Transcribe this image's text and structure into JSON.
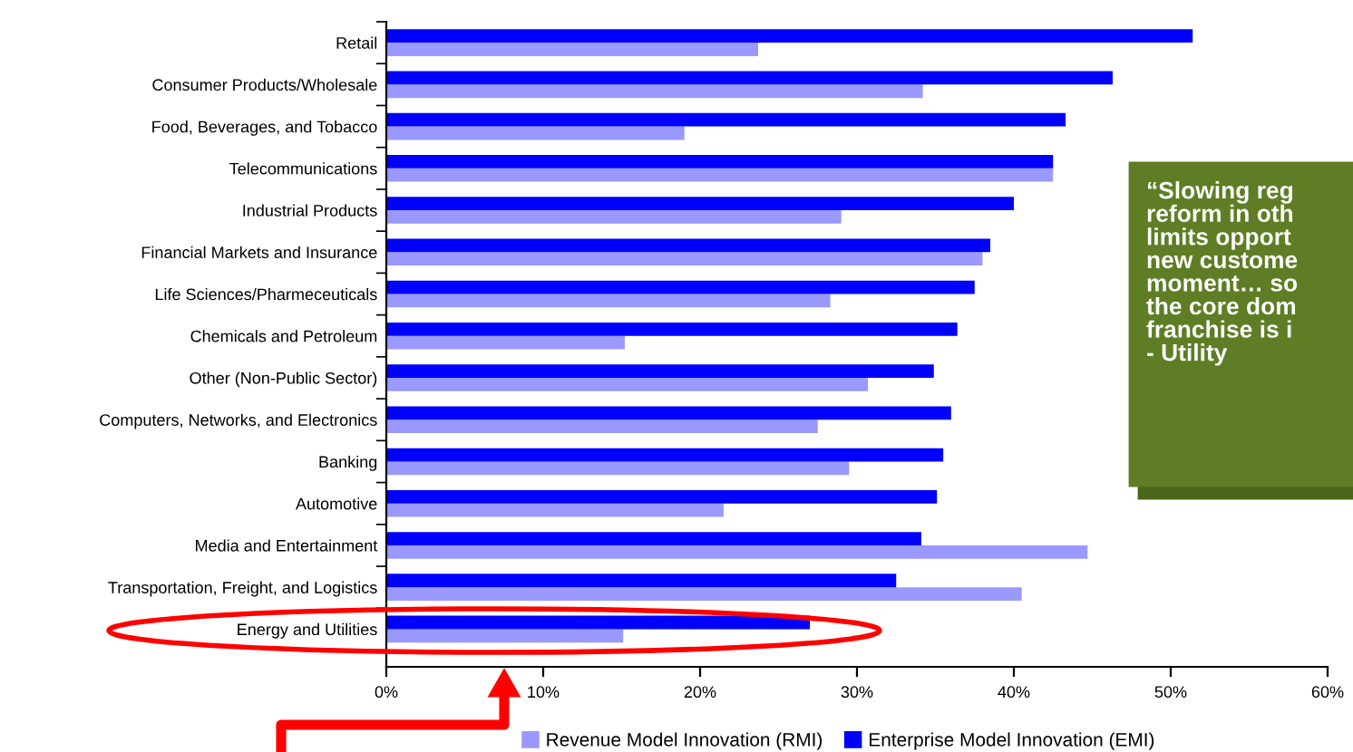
{
  "chart_data": {
    "type": "bar",
    "orientation": "horizontal",
    "categories": [
      "Retail",
      "Consumer Products/Wholesale",
      "Food, Beverages, and Tobacco",
      "Telecommunications",
      "Industrial Products",
      "Financial Markets and Insurance",
      "Life Sciences/Pharmeceuticals",
      "Chemicals and Petroleum",
      "Other (Non-Public Sector)",
      "Computers, Networks, and Electronics",
      "Banking",
      "Automotive",
      "Media and Entertainment",
      "Transportation, Freight, and Logistics",
      "Energy and Utilities"
    ],
    "series": [
      {
        "name": "Revenue Model Innovation (RMI)",
        "color": "#9999ff",
        "values": [
          23.7,
          34.2,
          19.0,
          42.5,
          29.0,
          38.0,
          28.3,
          15.2,
          30.7,
          27.5,
          29.5,
          21.5,
          44.7,
          40.5,
          15.1
        ]
      },
      {
        "name": "Enterprise Model Innovation (EMI)",
        "color": "#0000ff",
        "values": [
          51.4,
          46.3,
          43.3,
          42.5,
          40.0,
          38.5,
          37.5,
          36.4,
          34.9,
          36.0,
          35.5,
          35.1,
          34.1,
          32.5,
          27.0
        ]
      }
    ],
    "xlim": [
      0,
      60
    ],
    "xticks": [
      {
        "value": 0,
        "label": "0%"
      },
      {
        "value": 10,
        "label": "10%"
      },
      {
        "value": 20,
        "label": "20%"
      },
      {
        "value": 30,
        "label": "30%"
      },
      {
        "value": 40,
        "label": "40%"
      },
      {
        "value": 50,
        "label": "50%"
      },
      {
        "value": 60,
        "label": "60%"
      }
    ],
    "grid": false,
    "legend": "bottom",
    "annotations": [
      "“Slowing reg\nreform in oth\nlimits opport\nnew custome\nmoment… so\nthe core dom\nfranchise is i\n- Utility"
    ]
  }
}
